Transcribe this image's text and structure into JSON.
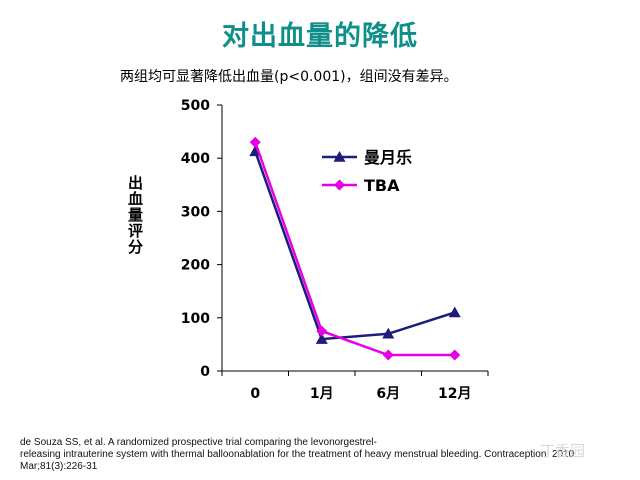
{
  "page": {
    "title": "对出血量的降低",
    "subtitle": "两组均可显著降低出血量(p<0.001)，组间没有差异。",
    "citation_line1": "de Souza SS, et al. A randomized prospective trial comparing the levonorgestrel-",
    "citation_line2": "releasing intrauterine system with thermal balloonablation for the treatment of heavy menstrual bleeding. Contraception. 2010",
    "citation_line3": "Mar;81(3):226-31",
    "watermark": "丁香园"
  },
  "chart_data": {
    "type": "line",
    "title": "",
    "xlabel": "",
    "ylabel": "出血量评分",
    "categories": [
      "0",
      "1月",
      "6月",
      "12月"
    ],
    "ylim": [
      0,
      500
    ],
    "yticks": [
      0,
      100,
      200,
      300,
      400,
      500
    ],
    "grid": false,
    "legend_position": "top-right",
    "series": [
      {
        "name": "曼月乐",
        "values": [
          413,
          60,
          70,
          110
        ],
        "color": "#1c1c7a",
        "marker": "triangle"
      },
      {
        "name": "TBA",
        "values": [
          430,
          75,
          30,
          30
        ],
        "color": "#e600e6",
        "marker": "diamond"
      }
    ]
  }
}
